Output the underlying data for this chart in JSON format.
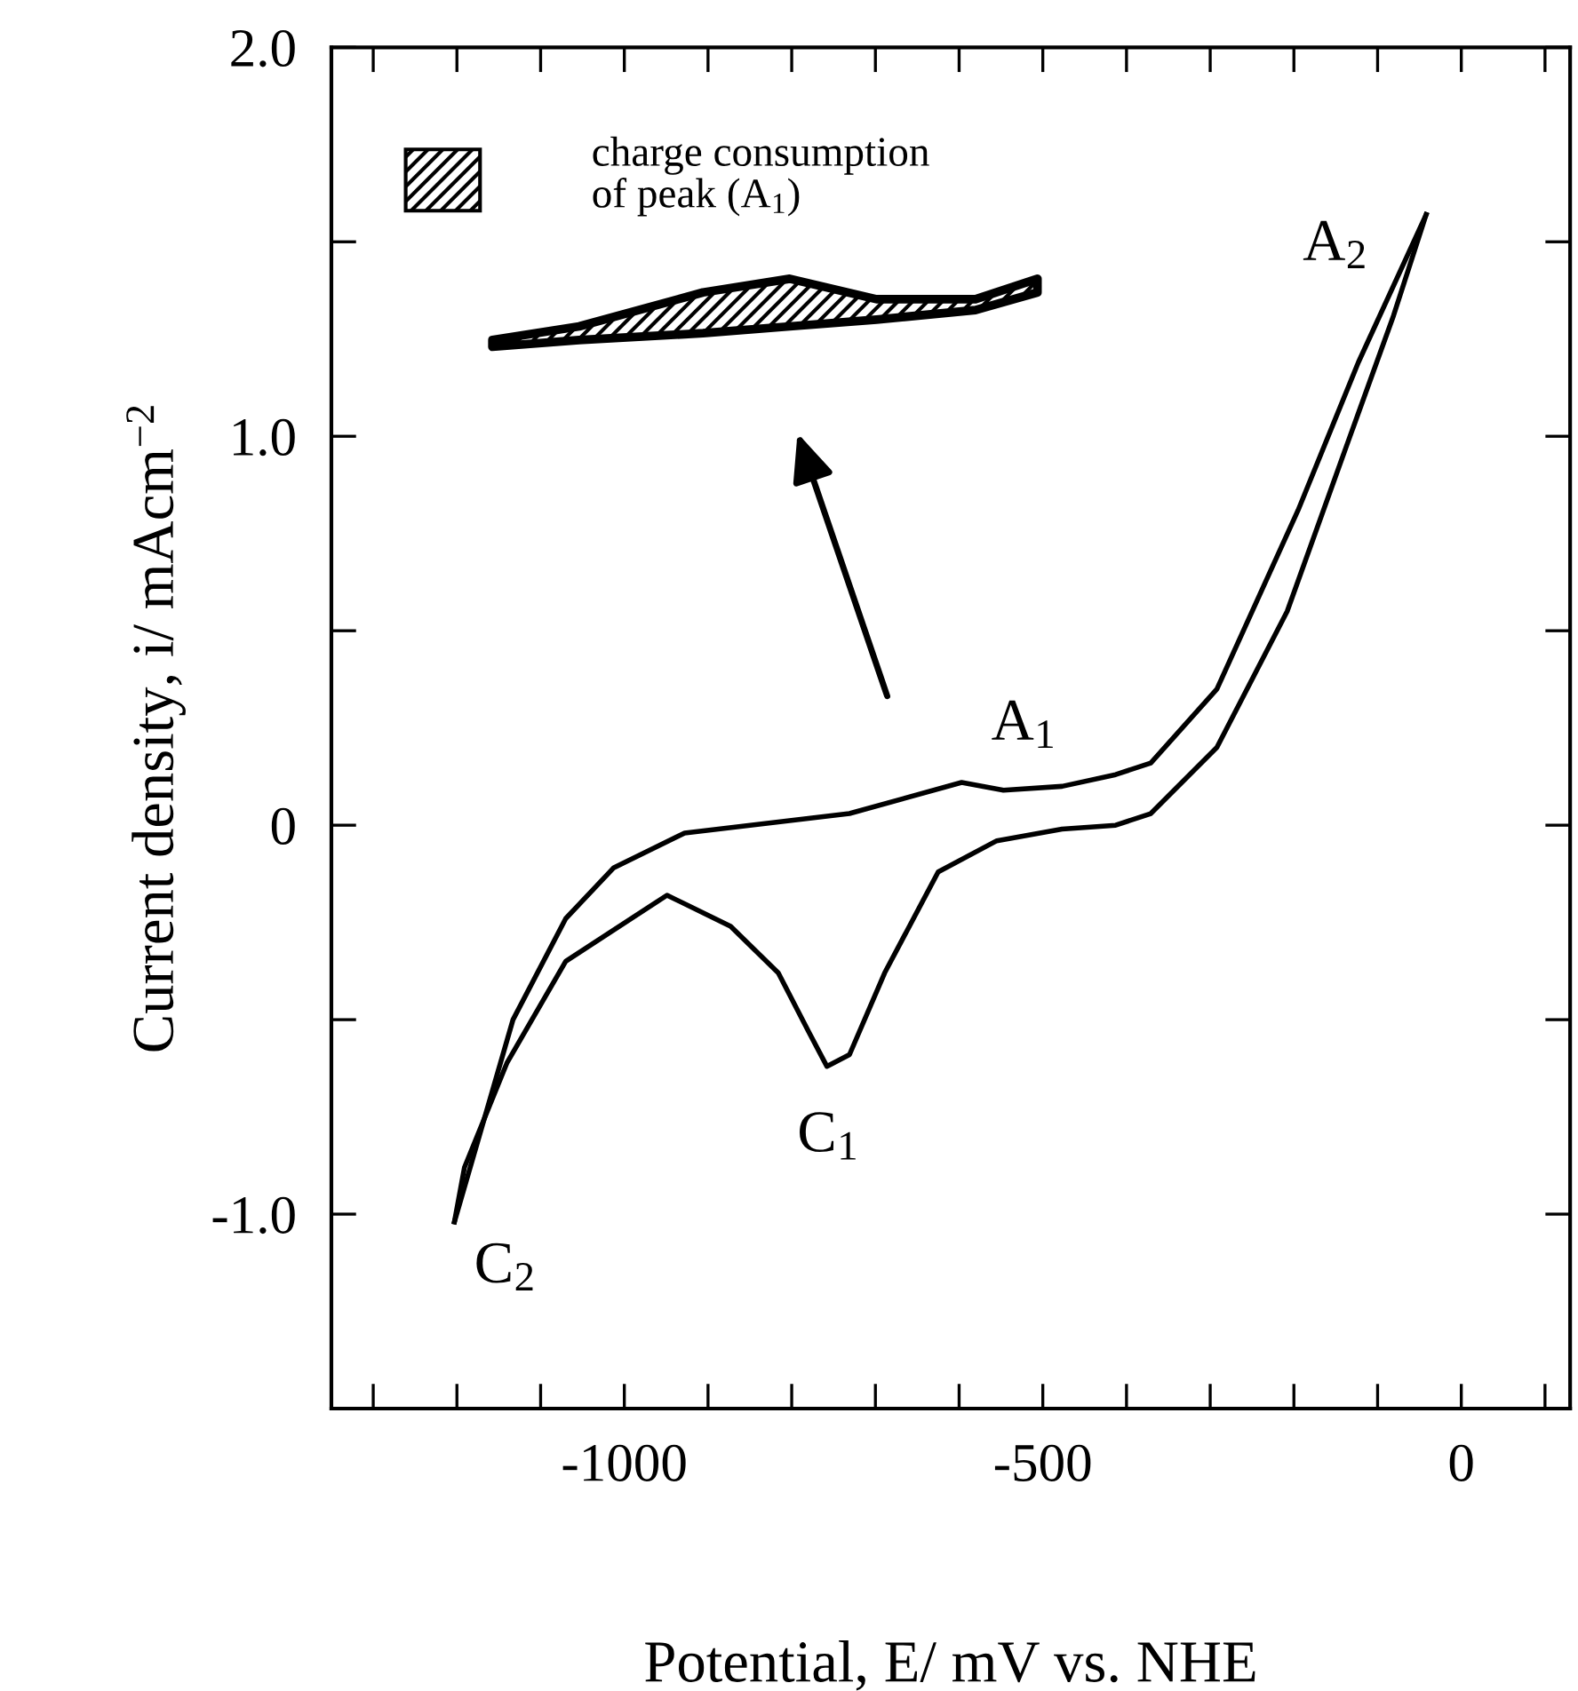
{
  "chart_data": {
    "type": "line",
    "xlabel": "Potential, E/ mV vs. NHE",
    "ylabel": "Current density, i/ mAcm$^{−2}$",
    "series": [
      {
        "color": "#000000",
        "x": [
          -1203,
          -1133,
          -1070,
          -1013,
          -928,
          -731,
          -597,
          -547,
          -477,
          -413,
          -371,
          -292,
          -195,
          -123,
          -42
        ],
        "values": [
          -1.02,
          -0.5,
          -0.24,
          -0.11,
          -0.02,
          0.03,
          0.11,
          0.09,
          0.1,
          0.13,
          0.16,
          0.35,
          0.81,
          1.19,
          1.57
        ]
      },
      {
        "color": "#000000",
        "x": [
          -42,
          -81,
          -138,
          -208,
          -292,
          -371,
          -413,
          -477,
          -555,
          -625,
          -689,
          -731,
          -758,
          -780,
          -816,
          -873,
          -949,
          -1070,
          -1140,
          -1191,
          -1203
        ],
        "values": [
          1.57,
          1.31,
          0.97,
          0.55,
          0.2,
          0.03,
          0.0,
          -0.01,
          -0.04,
          -0.12,
          -0.38,
          -0.59,
          -0.62,
          -0.53,
          -0.38,
          -0.26,
          -0.18,
          -0.35,
          -0.61,
          -0.88,
          -1.02
        ]
      }
    ],
    "annotations": [
      {
        "text": "A$_{1}$",
        "x": -597,
        "y": 0.11
      },
      {
        "text": "A$_{2}$",
        "x": -42,
        "y": 1.57
      },
      {
        "text": "C$_{1}$",
        "x": -758,
        "y": -0.62
      },
      {
        "text": "C$_{2}$",
        "x": -1203,
        "y": -1.02
      },
      "charge consumption\nof peak (A$_{1}$)"
    ],
    "xlim": [
      -1350,
      130
    ],
    "ylim": [
      -1.5,
      2.0
    ],
    "xticks": [
      {
        "value": -1300,
        "label": null
      },
      {
        "value": -1200,
        "label": null
      },
      {
        "value": -1100,
        "label": null
      },
      {
        "value": -1000,
        "label": "-1000"
      },
      {
        "value": -900,
        "label": null
      },
      {
        "value": -800,
        "label": null
      },
      {
        "value": -700,
        "label": null
      },
      {
        "value": -600,
        "label": null
      },
      {
        "value": -500,
        "label": "-500"
      },
      {
        "value": -400,
        "label": null
      },
      {
        "value": -300,
        "label": null
      },
      {
        "value": -200,
        "label": null
      },
      {
        "value": -100,
        "label": null
      },
      {
        "value": 0,
        "label": "0"
      },
      {
        "value": 100,
        "label": null
      }
    ],
    "yticks": [
      {
        "value": -1.5,
        "label": null
      },
      {
        "value": -1.0,
        "label": "-1.0"
      },
      {
        "value": -0.5,
        "label": null
      },
      {
        "value": 0,
        "label": "0"
      },
      {
        "value": 0.5,
        "label": null
      },
      {
        "value": 1.0,
        "label": "1.0"
      },
      {
        "value": 1.5,
        "label": null
      },
      {
        "value": 2.0,
        "label": "2.0"
      }
    ],
    "marker": "none",
    "line_style": "solid"
  }
}
